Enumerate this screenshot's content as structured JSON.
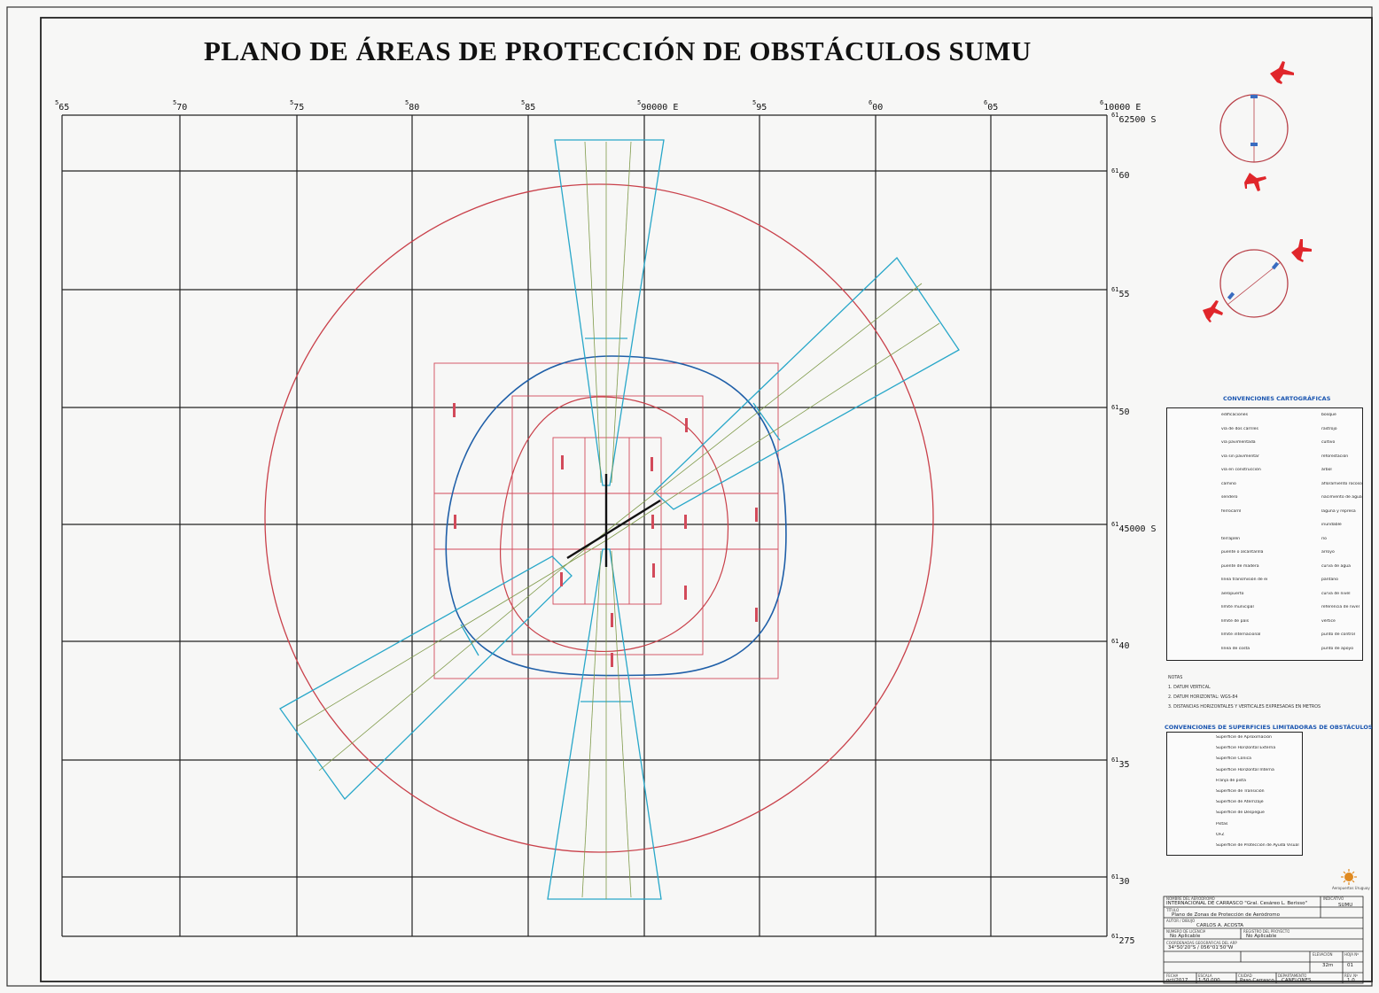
{
  "title": "PLANO DE ÁREAS DE  PROTECCIÓN DE OBSTÁCULOS   SUMU",
  "colors": {
    "grid": "#222222",
    "outer_circle": "#c9404a",
    "conical_surface": "#1f5fa8",
    "approach_surface": "#28a7c9",
    "center_lines": "#7f9a4a",
    "zones": "#d24a5a",
    "aircraft": "#e0262b"
  },
  "grid": {
    "easting_labels": [
      {
        "pre": "5",
        "main": "65"
      },
      {
        "pre": "5",
        "main": "70"
      },
      {
        "pre": "5",
        "main": "75"
      },
      {
        "pre": "5",
        "main": "80"
      },
      {
        "pre": "5",
        "main": "85"
      },
      {
        "pre": "5",
        "main": "90000 E"
      },
      {
        "pre": "5",
        "main": "95"
      },
      {
        "pre": "6",
        "main": "00"
      },
      {
        "pre": "6",
        "main": "05"
      },
      {
        "pre": "6",
        "main": "10000 E"
      }
    ],
    "northing_labels": [
      {
        "pre": "61",
        "main": "62500 S"
      },
      {
        "pre": "61",
        "main": "60"
      },
      {
        "pre": "61",
        "main": "55"
      },
      {
        "pre": "61",
        "main": "50"
      },
      {
        "pre": "61",
        "main": "45000 S"
      },
      {
        "pre": "61",
        "main": "40"
      },
      {
        "pre": "61",
        "main": "35"
      },
      {
        "pre": "61",
        "main": "30"
      },
      {
        "pre": "61",
        "main": "275"
      }
    ]
  },
  "legend_cartographic": {
    "title": "CONVENCIONES CARTOGRÁFICAS",
    "left": [
      "edificaciones",
      "vía de dos carriles",
      "vía pavimentada",
      "vía sin pavimentar",
      "vía en construcción",
      "camino",
      "sendero",
      "ferrocarril",
      "",
      "terraplén",
      "puente o alcantarilla",
      "puente de madera",
      "línea transmisión de energía",
      "aeropuerto",
      "límite municipal",
      "límite de país",
      "límite internacional",
      "línea de costa"
    ],
    "right": [
      "bosque",
      "rastrojo",
      "cultivo",
      "reforestación",
      "árbol",
      "afloramiento rocoso",
      "nacimiento de agua",
      "laguna y represa",
      "inundable",
      "río",
      "arroyo",
      "curva de agua",
      "pantano",
      "curva de nivel",
      "referencia de nivel",
      "vértice",
      "punto de control",
      "punto de apoyo"
    ]
  },
  "notes": {
    "label": "NOTAS",
    "lines": [
      "1. DATUM VERTICAL",
      "2. DATUM HORIZONTAL: WGS-84",
      "3. DISTANCIAS HORIZONTALES Y VERTICALES EXPRESADAS EN METROS"
    ]
  },
  "legend_surfaces": {
    "title": "CONVENCIONES DE SUPERFICIES LIMITADORAS DE OBSTÁCULOS",
    "items": [
      {
        "label": "Superficie de Aproximación",
        "color": "#d24a5a"
      },
      {
        "label": "Superficie Horizontal Externa",
        "color": "#c9404a"
      },
      {
        "label": "Superficie Cónica",
        "color": "#1f5fa8"
      },
      {
        "label": "Superficie Horizontal Interna",
        "color": "#28a7c9"
      },
      {
        "label": "Franja de pista",
        "color": "#a03040"
      },
      {
        "label": "Superficie de Transición",
        "color": "#3a8a5a"
      },
      {
        "label": "Superficie de Aterrizaje",
        "color": "#d06aa0"
      },
      {
        "label": "Superficie de Despegue",
        "color": "#7f9a4a"
      },
      {
        "label": "Pistas",
        "color": "#222222"
      },
      {
        "label": "OFZ",
        "color": "#5a8ad0"
      },
      {
        "label": "Superficie de Protección de Ayuda Visual",
        "color": "#9a5ab0"
      }
    ]
  },
  "title_block": {
    "org": "Aeropuertos Uruguay",
    "aerodrome_caption": "NOMBRE DEL AERÓDROMO",
    "aerodrome": "INTERNACIONAL DE CARRASCO \"Gral. Cesáreo L. Berisso\"",
    "designator_caption": "INDICATIVO",
    "designator": "SUMU",
    "plan_caption": "TÍTULO",
    "plan": "Plano de Zonas de Protección de Aeródromo",
    "author_caption": "AUTOR / DIBUJÓ",
    "author": "CARLOS  A.  ACOSTA",
    "scale_caption": "ESCALA",
    "scale": "1:50.000",
    "license_caption": "NÚMERO DE LICENCIA",
    "license": "No Aplicable",
    "project_caption": "REGISTRO DEL PROYECTO",
    "project": "No Aplicable",
    "coords_caption": "COORDENADAS GEOGRÁFICAS DEL ARP",
    "coords": "34°50'20\"S / 056°01'50\"W",
    "elevation_caption": "ELEVACIÓN",
    "elevation": "32m",
    "sheet_caption": "HOJA Nº",
    "sheet": "01",
    "date_caption": "FECHA",
    "date": "oct/2017",
    "city_caption": "CIUDAD",
    "city": "Paso Carrasco",
    "dept_caption": "DEPARTAMENTO",
    "dept": "CANELONES",
    "rev_caption": "REV. Nº",
    "rev": "1.0"
  }
}
